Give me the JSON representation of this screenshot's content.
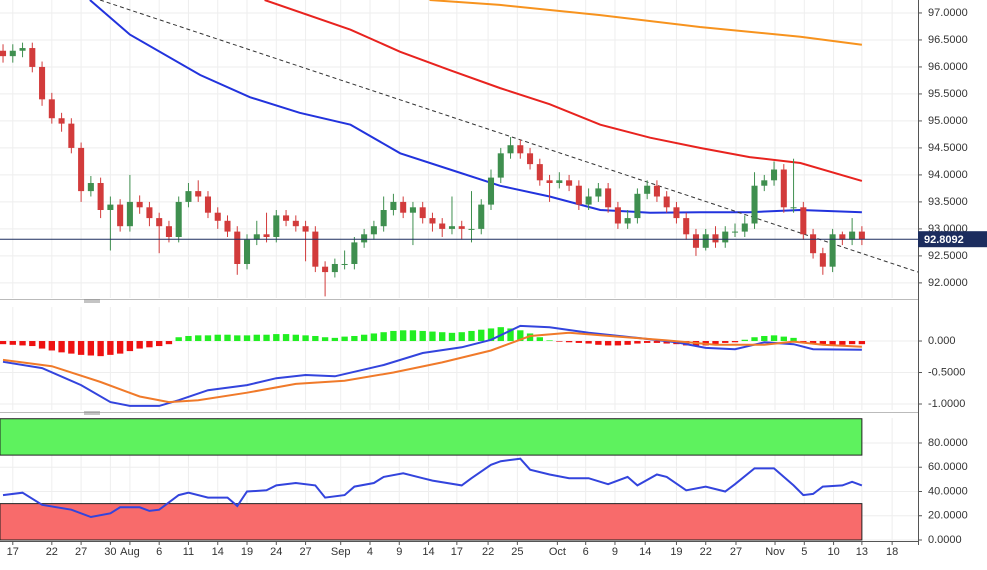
{
  "chart_data": [
    {
      "type": "candlestick",
      "xlim": [
        -0.31,
        93.75
      ],
      "ylim": [
        91.72,
        97.24
      ],
      "grid": true,
      "yticks": [
        {
          "value": 97,
          "label": "97.0000"
        },
        {
          "value": 96.5,
          "label": "96.5000"
        },
        {
          "value": 96,
          "label": "96.0000"
        },
        {
          "value": 95.5,
          "label": "95.5000"
        },
        {
          "value": 95,
          "label": "95.0000"
        },
        {
          "value": 94.5,
          "label": "94.5000"
        },
        {
          "value": 94,
          "label": "94.0000"
        },
        {
          "value": 93.5,
          "label": "93.5000"
        },
        {
          "value": 93,
          "label": "93.0000"
        },
        {
          "value": 92.5,
          "label": "92.5000"
        },
        {
          "value": 92,
          "label": "92.0000"
        }
      ],
      "up_color": "#3f8f4f",
      "down_color": "#d23b3b",
      "last_color": "#1c2d5e",
      "x": [
        0,
        1,
        2,
        3,
        4,
        5,
        6,
        7,
        8,
        9,
        10,
        11,
        12,
        13,
        14,
        15,
        16,
        17,
        18,
        19,
        20,
        21,
        22,
        23,
        24,
        25,
        26,
        27,
        28,
        29,
        30,
        31,
        32,
        33,
        34,
        35,
        36,
        37,
        38,
        39,
        40,
        41,
        42,
        43,
        44,
        45,
        46,
        47,
        48,
        49,
        50,
        51,
        52,
        53,
        54,
        55,
        56,
        57,
        58,
        59,
        60,
        61,
        62,
        63,
        64,
        65,
        66,
        67,
        68,
        69,
        70,
        71,
        72,
        73,
        74,
        75,
        76,
        77,
        78,
        79,
        80,
        81,
        82,
        83,
        84,
        85,
        86,
        87,
        88
      ],
      "open": [
        96.3,
        96.2,
        96.3,
        96.35,
        96.0,
        95.4,
        95.05,
        94.95,
        94.5,
        93.7,
        93.85,
        93.35,
        93.45,
        93.05,
        93.5,
        93.4,
        93.2,
        93.05,
        92.85,
        93.5,
        93.7,
        93.6,
        93.3,
        93.15,
        92.95,
        92.35,
        92.8,
        92.9,
        92.85,
        93.25,
        93.15,
        93.05,
        92.95,
        92.3,
        92.2,
        92.35,
        92.35,
        92.75,
        92.9,
        93.05,
        93.35,
        93.5,
        93.3,
        93.4,
        93.2,
        93.1,
        93.0,
        93.05,
        93.0,
        93.0,
        93.45,
        93.95,
        94.4,
        94.55,
        94.4,
        94.2,
        93.9,
        93.85,
        93.9,
        93.8,
        93.45,
        93.6,
        93.75,
        93.4,
        93.1,
        93.2,
        93.65,
        93.8,
        93.6,
        93.4,
        93.2,
        92.9,
        92.65,
        92.9,
        92.75,
        92.95,
        92.95,
        93.1,
        93.8,
        93.9,
        94.1,
        93.4,
        93.4,
        92.9,
        92.55,
        92.3,
        92.9,
        92.8,
        92.95
      ],
      "high": [
        96.42,
        96.42,
        96.45,
        96.45,
        96.1,
        95.52,
        95.15,
        95.05,
        94.6,
        93.98,
        93.95,
        93.6,
        93.55,
        94.0,
        93.62,
        93.5,
        93.3,
        93.15,
        93.6,
        93.85,
        93.9,
        93.7,
        93.4,
        93.25,
        93.05,
        92.9,
        93.15,
        93.3,
        93.35,
        93.35,
        93.25,
        93.15,
        93.05,
        92.4,
        92.45,
        92.6,
        92.85,
        93.0,
        93.15,
        93.6,
        93.65,
        93.6,
        93.5,
        93.5,
        93.3,
        93.2,
        93.6,
        93.15,
        93.7,
        93.55,
        94.1,
        94.5,
        94.7,
        94.65,
        94.5,
        94.3,
        94.0,
        94.05,
        94.0,
        93.9,
        93.75,
        93.85,
        93.85,
        93.5,
        93.35,
        93.75,
        93.9,
        93.9,
        93.7,
        93.5,
        93.3,
        93.0,
        93.0,
        93.05,
        93.05,
        93.1,
        93.25,
        94.05,
        94.0,
        94.25,
        94.2,
        94.3,
        93.5,
        93.0,
        92.65,
        93.0,
        92.95,
        93.2,
        93.05
      ],
      "low": [
        96.08,
        96.08,
        96.18,
        95.9,
        95.28,
        94.95,
        94.8,
        94.4,
        93.5,
        93.6,
        93.2,
        92.6,
        92.95,
        92.95,
        93.28,
        93.05,
        92.55,
        92.75,
        92.75,
        93.4,
        93.5,
        93.2,
        93.0,
        92.85,
        92.15,
        92.25,
        92.7,
        92.75,
        92.75,
        93.05,
        92.95,
        92.4,
        92.2,
        91.75,
        92.1,
        92.25,
        92.25,
        92.65,
        92.8,
        92.95,
        93.25,
        93.2,
        92.7,
        93.1,
        92.95,
        92.85,
        92.9,
        92.8,
        92.75,
        92.9,
        93.35,
        93.85,
        94.3,
        94.3,
        94.1,
        93.8,
        93.5,
        93.75,
        93.7,
        93.35,
        93.35,
        93.5,
        93.3,
        93.0,
        93.0,
        93.1,
        93.55,
        93.5,
        93.3,
        93.1,
        92.8,
        92.5,
        92.6,
        92.65,
        92.65,
        92.85,
        92.85,
        93.0,
        93.7,
        93.8,
        93.3,
        93.3,
        92.8,
        92.45,
        92.15,
        92.2,
        92.7,
        92.7,
        92.7
      ],
      "close": [
        96.2,
        96.3,
        96.35,
        96.0,
        95.4,
        95.05,
        94.95,
        94.5,
        93.7,
        93.85,
        93.35,
        93.45,
        93.05,
        93.5,
        93.4,
        93.2,
        93.05,
        92.85,
        93.5,
        93.7,
        93.6,
        93.3,
        93.15,
        92.95,
        92.35,
        92.8,
        92.9,
        92.85,
        93.25,
        93.15,
        93.05,
        92.95,
        92.3,
        92.2,
        92.35,
        92.35,
        92.75,
        92.9,
        93.05,
        93.35,
        93.5,
        93.3,
        93.4,
        93.2,
        93.1,
        93.0,
        93.05,
        93.0,
        93.0,
        93.45,
        93.95,
        94.4,
        94.55,
        94.4,
        94.2,
        93.9,
        93.85,
        93.9,
        93.8,
        93.45,
        93.6,
        93.75,
        93.4,
        93.1,
        93.2,
        93.65,
        93.8,
        93.6,
        93.4,
        93.2,
        92.9,
        92.65,
        92.9,
        92.75,
        92.95,
        92.95,
        93.1,
        93.8,
        93.9,
        94.1,
        93.4,
        93.4,
        92.9,
        92.55,
        92.3,
        92.9,
        92.8,
        92.95,
        92.8092
      ],
      "series": [
        {
          "color": "#2233dd",
          "x": [
            8.9,
            13,
            20.2,
            25.3,
            30.4,
            35.6,
            40.7,
            45.8,
            50.9,
            56,
            61.2,
            66.3,
            71.4,
            76.5,
            81.7,
            88
          ],
          "values": [
            97.24,
            96.6,
            95.85,
            95.44,
            95.15,
            94.93,
            94.4,
            94.1,
            93.8,
            93.6,
            93.35,
            93.3,
            93.31,
            93.31,
            93.35,
            93.31
          ]
        },
        {
          "color": "#e8231f",
          "x": [
            26.8,
            35.6,
            40.7,
            45.8,
            50.9,
            56,
            61.2,
            66.3,
            71.4,
            76.5,
            81.7,
            88
          ],
          "values": [
            97.24,
            96.69,
            96.28,
            95.94,
            95.61,
            95.31,
            94.93,
            94.69,
            94.5,
            94.33,
            94.22,
            93.89
          ]
        },
        {
          "color": "#f7931e",
          "x": [
            43.7,
            50.9,
            61.2,
            71.4,
            81.7,
            88
          ],
          "values": [
            97.24,
            97.15,
            96.96,
            96.74,
            96.56,
            96.41
          ]
        }
      ],
      "trendline": {
        "color": "#333333",
        "x": [
          9.94,
          93.75
        ],
        "y": [
          97.24,
          92.2
        ]
      }
    },
    {
      "type": "macd",
      "xlim": [
        -0.31,
        93.75
      ],
      "ylim": [
        -1.095,
        0.54
      ],
      "grid": true,
      "yticks": [
        {
          "value": 0,
          "label": "0.000"
        },
        {
          "value": -0.5,
          "label": "-0.5000"
        },
        {
          "value": -1,
          "label": "-1.0000"
        }
      ],
      "pos_color": "#22ee22",
      "neg_color": "#ee1111",
      "histogram": [
        -0.05,
        -0.06,
        -0.07,
        -0.08,
        -0.12,
        -0.15,
        -0.18,
        -0.2,
        -0.22,
        -0.23,
        -0.24,
        -0.22,
        -0.2,
        -0.16,
        -0.12,
        -0.1,
        -0.08,
        -0.05,
        0.06,
        0.08,
        0.09,
        0.09,
        0.1,
        0.1,
        0.09,
        0.09,
        0.1,
        0.1,
        0.11,
        0.11,
        0.1,
        0.09,
        0.08,
        0.06,
        0.05,
        0.07,
        0.08,
        0.1,
        0.12,
        0.14,
        0.16,
        0.17,
        0.17,
        0.16,
        0.15,
        0.14,
        0.13,
        0.14,
        0.16,
        0.18,
        0.2,
        0.22,
        0.2,
        0.17,
        0.12,
        0.06,
        0.01,
        -0.01,
        -0.02,
        -0.03,
        -0.04,
        -0.06,
        -0.07,
        -0.07,
        -0.06,
        -0.04,
        -0.03,
        -0.03,
        -0.04,
        -0.05,
        -0.07,
        -0.08,
        -0.07,
        -0.05,
        -0.03,
        -0.02,
        0.02,
        0.06,
        0.08,
        0.09,
        0.07,
        0.05,
        -0.02,
        -0.05,
        -0.07,
        -0.07,
        -0.06,
        -0.05,
        -0.05
      ],
      "series": [
        {
          "color": "#3344dd",
          "x": [
            0,
            4,
            8,
            11,
            13,
            16,
            18,
            21,
            25,
            28,
            31,
            34,
            39,
            43,
            47,
            50,
            53,
            56,
            60,
            65,
            69,
            72,
            75,
            78,
            81,
            83,
            88
          ],
          "values": [
            -0.33,
            -0.43,
            -0.7,
            -0.97,
            -1.03,
            -1.03,
            -0.94,
            -0.78,
            -0.7,
            -0.59,
            -0.54,
            -0.56,
            -0.38,
            -0.19,
            -0.1,
            0.02,
            0.24,
            0.22,
            0.13,
            0.05,
            -0.02,
            -0.11,
            -0.13,
            -0.02,
            -0.05,
            -0.13,
            -0.14
          ]
        },
        {
          "color": "#f07a2a",
          "x": [
            0,
            5,
            10,
            14,
            17,
            20,
            25,
            30,
            35,
            40,
            45,
            50,
            54,
            58,
            63,
            68,
            73,
            78,
            81,
            84,
            88
          ],
          "values": [
            -0.3,
            -0.4,
            -0.65,
            -0.88,
            -0.97,
            -0.94,
            -0.82,
            -0.68,
            -0.63,
            -0.5,
            -0.34,
            -0.15,
            0.08,
            0.13,
            0.07,
            0.01,
            -0.06,
            -0.06,
            -0.01,
            -0.06,
            -0.09
          ]
        }
      ]
    },
    {
      "type": "line",
      "xlim": [
        -0.31,
        93.75
      ],
      "ylim": [
        0,
        100.6
      ],
      "grid": true,
      "yticks": [
        {
          "value": 80,
          "label": "80.0000"
        },
        {
          "value": 60,
          "label": "60.0000"
        },
        {
          "value": 40,
          "label": "40.0000"
        },
        {
          "value": 20,
          "label": "20.0000"
        },
        {
          "value": 0,
          "label": "0.0000"
        }
      ],
      "bands": [
        {
          "from": 70,
          "to": 100,
          "color": "#5ef25e"
        },
        {
          "from": 0,
          "to": 30,
          "color": "#f86b6b"
        }
      ],
      "series": [
        {
          "color": "#3344dd",
          "x": [
            0,
            2,
            4,
            7,
            9,
            11,
            12,
            14,
            15,
            16,
            18,
            19,
            21,
            23,
            24,
            25,
            27,
            28,
            30,
            32,
            33,
            35,
            36,
            38,
            39,
            41,
            43,
            44,
            47,
            48,
            50,
            51,
            53,
            54,
            56,
            58,
            60,
            62,
            64,
            65,
            67,
            68,
            70,
            72,
            74,
            75,
            77,
            78,
            79,
            81,
            82,
            83,
            84,
            86,
            87,
            88
          ],
          "values": [
            37,
            39,
            29,
            25,
            19,
            22,
            27,
            27,
            24,
            25,
            37,
            39,
            35,
            35,
            28,
            40,
            41,
            45,
            47,
            45,
            35,
            37,
            44,
            47,
            52,
            55,
            51,
            49,
            45,
            51,
            62,
            65,
            67,
            58,
            54,
            51,
            51,
            46,
            52,
            45,
            54,
            52,
            41,
            44,
            40,
            46,
            59,
            59,
            59,
            45,
            37,
            38,
            44,
            45,
            48,
            45
          ]
        }
      ],
      "xticks": [
        {
          "value": 1,
          "label": "17"
        },
        {
          "value": 5,
          "label": "22"
        },
        {
          "value": 8,
          "label": "27"
        },
        {
          "value": 11,
          "label": "30"
        },
        {
          "value": 13,
          "label": "Aug"
        },
        {
          "value": 16,
          "label": "6"
        },
        {
          "value": 19,
          "label": "11"
        },
        {
          "value": 22,
          "label": "14"
        },
        {
          "value": 25,
          "label": "19"
        },
        {
          "value": 28,
          "label": "24"
        },
        {
          "value": 31,
          "label": "27"
        },
        {
          "value": 34.6,
          "label": "Sep"
        },
        {
          "value": 37.6,
          "label": "4"
        },
        {
          "value": 40.6,
          "label": "9"
        },
        {
          "value": 43.6,
          "label": "14"
        },
        {
          "value": 46.5,
          "label": "17"
        },
        {
          "value": 49.7,
          "label": "22"
        },
        {
          "value": 52.7,
          "label": "25"
        },
        {
          "value": 56.8,
          "label": "Oct"
        },
        {
          "value": 59.7,
          "label": "6"
        },
        {
          "value": 62.7,
          "label": "9"
        },
        {
          "value": 65.8,
          "label": "14"
        },
        {
          "value": 69,
          "label": "19"
        },
        {
          "value": 72,
          "label": "22"
        },
        {
          "value": 75.1,
          "label": "27"
        },
        {
          "value": 79.1,
          "label": "Nov"
        },
        {
          "value": 82.1,
          "label": "5"
        },
        {
          "value": 85.1,
          "label": "10"
        },
        {
          "value": 88,
          "label": "13"
        },
        {
          "value": 91.1,
          "label": "18"
        }
      ]
    }
  ]
}
